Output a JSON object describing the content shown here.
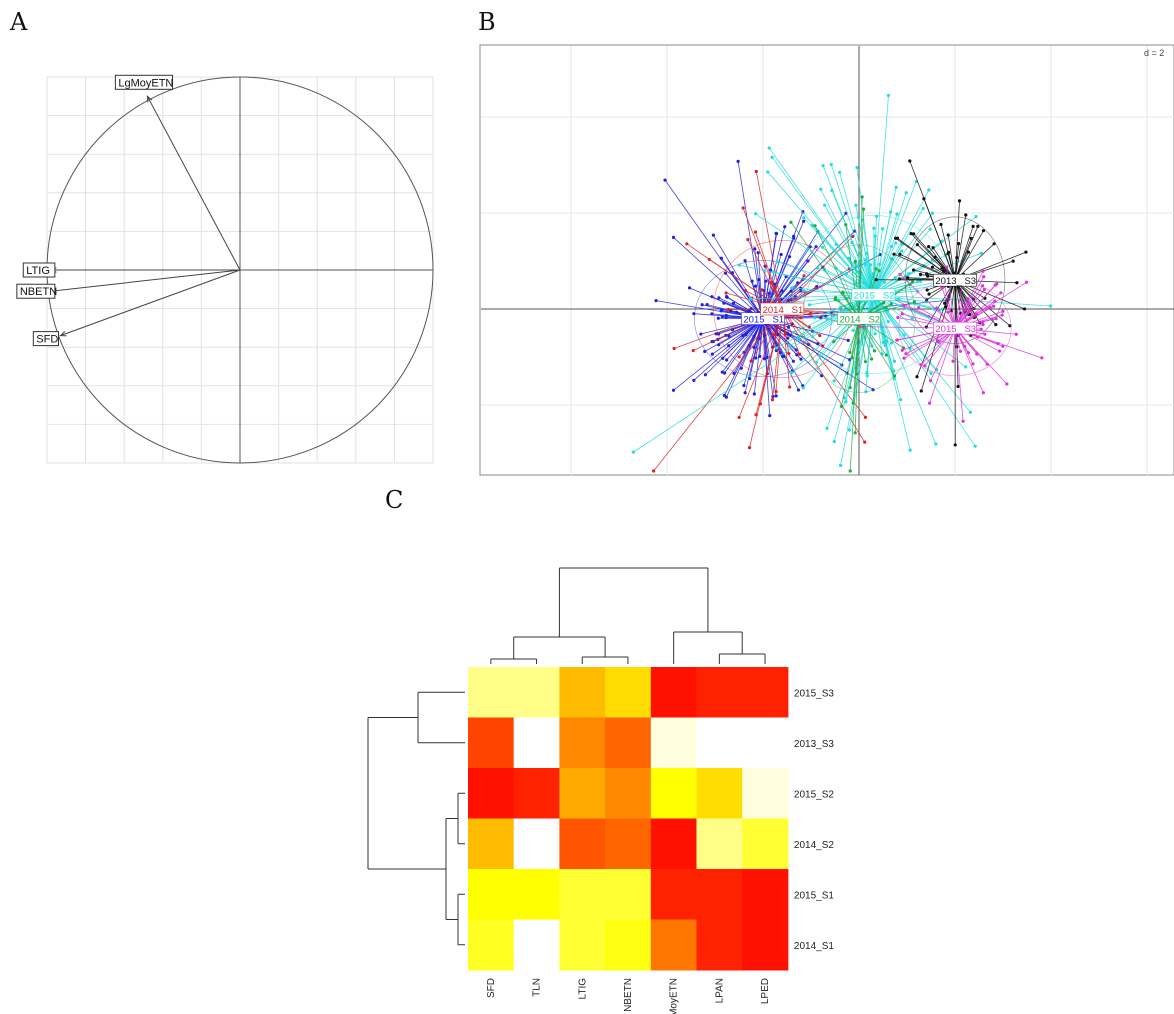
{
  "panels": {
    "a": "A",
    "b": "B",
    "c": "C"
  },
  "chart_data": [
    {
      "panel": "A",
      "type": "scatter",
      "grid": true,
      "xlim": [
        -1,
        1
      ],
      "ylim": [
        -1,
        1
      ],
      "arrows": [
        {
          "label": "LgMoyETN",
          "x": -0.48,
          "y": 0.9
        },
        {
          "label": "LTIG",
          "x": -0.98,
          "y": 0.0
        },
        {
          "label": "NBETN",
          "x": -0.98,
          "y": -0.11
        },
        {
          "label": "SFD",
          "x": -0.93,
          "y": -0.34
        }
      ]
    },
    {
      "panel": "B",
      "type": "scatter",
      "grid_scale_label": "d = 2",
      "grid": true,
      "groups": [
        {
          "label": "2015_S1",
          "color": "#2222dd",
          "cx": -2.0,
          "cy": -0.2,
          "sx": 1.1,
          "sy": 1.1,
          "n": 170
        },
        {
          "label": "2014_S1",
          "color": "#dd2222",
          "cx": -1.6,
          "cy": 0.0,
          "sx": 1.1,
          "sy": 1.3,
          "n": 45
        },
        {
          "label": "2015_S2",
          "color": "#22dddd",
          "cx": 0.3,
          "cy": 0.3,
          "sx": 1.3,
          "sy": 1.5,
          "n": 150
        },
        {
          "label": "2014_S2",
          "color": "#22aa44",
          "cx": 0.0,
          "cy": -0.2,
          "sx": 0.9,
          "sy": 1.4,
          "n": 35
        },
        {
          "label": "2013_S3",
          "color": "#111111",
          "cx": 2.0,
          "cy": 0.6,
          "sx": 0.8,
          "sy": 1.2,
          "n": 70
        },
        {
          "label": "2015_S3",
          "color": "#dd33dd",
          "cx": 2.0,
          "cy": -0.4,
          "sx": 0.9,
          "sy": 0.9,
          "n": 70
        }
      ]
    },
    {
      "panel": "C",
      "type": "heatmap",
      "columns": [
        "SFD",
        "TLN",
        "LTIG",
        "NBETN",
        "LgMoyETN",
        "LPAN",
        "LPED"
      ],
      "rows": [
        "2015_S3",
        "2013_S3",
        "2015_S2",
        "2014_S2",
        "2015_S1",
        "2014_S1"
      ],
      "colors": [
        [
          "#ffff88",
          "#ffff88",
          "#ffbb00",
          "#ffdd00",
          "#ff1100",
          "#ff2200",
          "#ff2200"
        ],
        [
          "#ff4400",
          "#ffffff",
          "#ff8800",
          "#ff6600",
          "#ffffdd",
          "#ffffff",
          "#ffffff"
        ],
        [
          "#ff1100",
          "#ff2200",
          "#ffaa00",
          "#ff8800",
          "#ffff00",
          "#ffdd00",
          "#ffffdd"
        ],
        [
          "#ffbb00",
          "#ffffff",
          "#ff5500",
          "#ff6600",
          "#ff1100",
          "#ffff88",
          "#ffff33"
        ],
        [
          "#ffff00",
          "#ffff00",
          "#ffff33",
          "#ffff33",
          "#ff2200",
          "#ff2200",
          "#ff1100"
        ],
        [
          "#ffff22",
          "#ffffff",
          "#ffff33",
          "#ffff11",
          "#ff7700",
          "#ff2200",
          "#ff1100"
        ]
      ]
    }
  ]
}
